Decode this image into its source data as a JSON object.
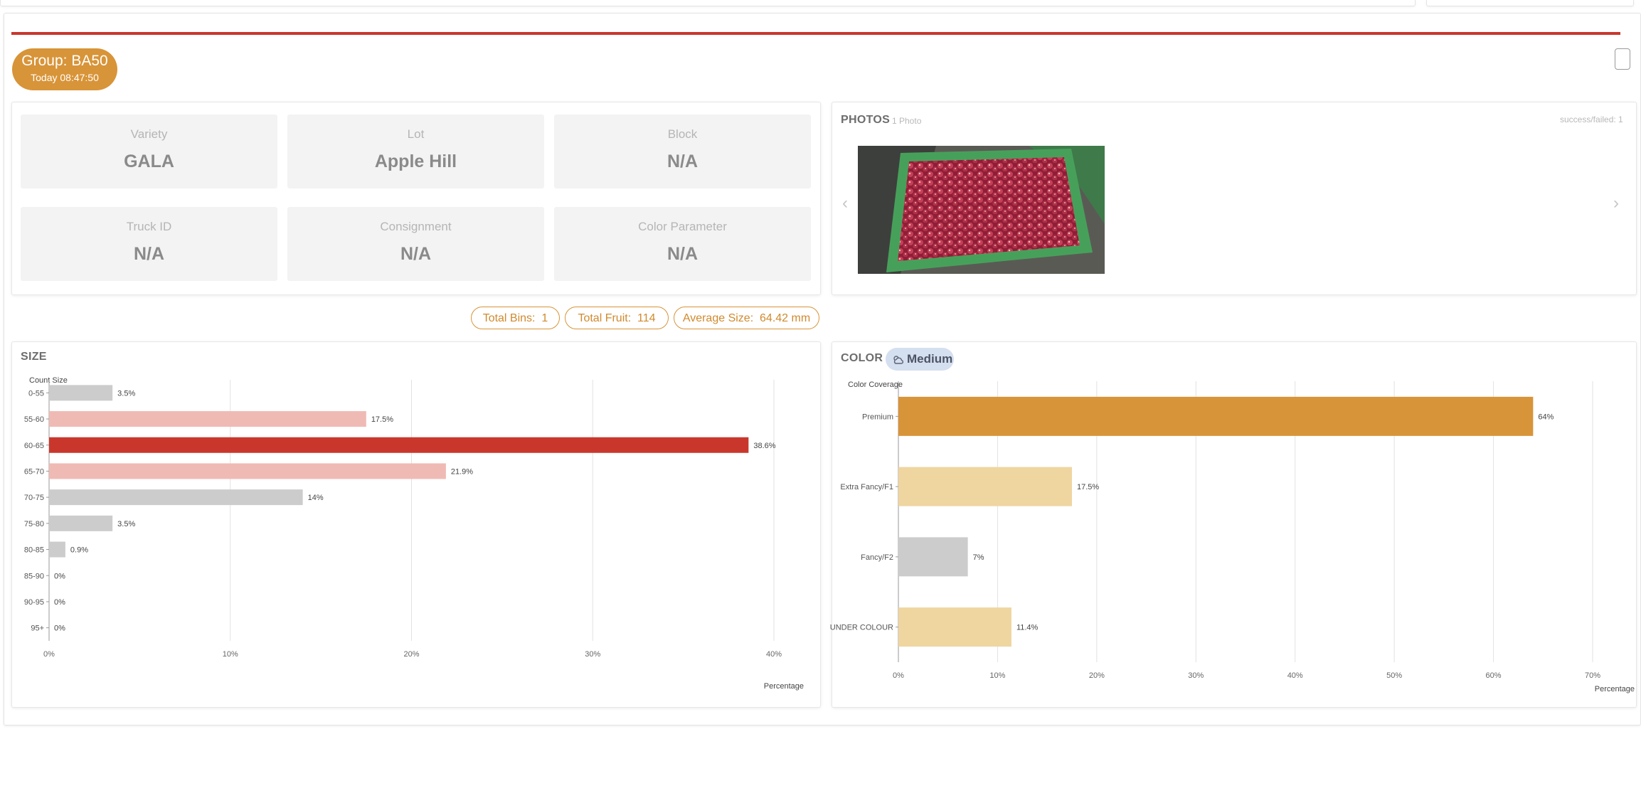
{
  "group": {
    "title": "Group: BA50",
    "time": "Today 08:47:50"
  },
  "info_tiles": [
    {
      "label": "Variety",
      "value": "GALA"
    },
    {
      "label": "Lot",
      "value": "Apple Hill"
    },
    {
      "label": "Block",
      "value": "N/A"
    },
    {
      "label": "Truck ID",
      "value": "N/A"
    },
    {
      "label": "Consignment",
      "value": "N/A"
    },
    {
      "label": "Color Parameter",
      "value": "N/A"
    }
  ],
  "photos": {
    "title": "PHOTOS",
    "count_label": "1 Photo",
    "status": "success/failed: 1"
  },
  "stats": {
    "bins_label": "Total Bins:",
    "bins_value": "1",
    "fruit_label": "Total Fruit:",
    "fruit_value": "114",
    "avg_label": "Average Size:",
    "avg_value": "64.42 mm"
  },
  "size_section": {
    "title": "SIZE"
  },
  "color_section": {
    "title": "COLOR",
    "badge": "Medium",
    "badge_icon": "weather-icon"
  },
  "colors": {
    "accent": "#d89438",
    "red": "#c9372c",
    "pink": "#f0bab4",
    "grey": "#cccccc",
    "tan": "#efd5a0"
  },
  "chart_data": [
    {
      "type": "bar",
      "orientation": "horizontal",
      "ylabel": "Count Size",
      "xlabel": "Percentage",
      "categories": [
        "0-55",
        "55-60",
        "60-65",
        "65-70",
        "70-75",
        "75-80",
        "80-85",
        "85-90",
        "90-95",
        "95+"
      ],
      "values": [
        3.5,
        17.5,
        38.6,
        21.9,
        14,
        3.5,
        0.9,
        0,
        0,
        0
      ],
      "labels": [
        "3.5%",
        "17.5%",
        "38.6%",
        "21.9%",
        "14%",
        "3.5%",
        "0.9%",
        "0%",
        "0%",
        "0%"
      ],
      "bar_colors": [
        "#cccccc",
        "#f0bab4",
        "#c9372c",
        "#f0bab4",
        "#cccccc",
        "#cccccc",
        "#cccccc",
        "#cccccc",
        "#cccccc",
        "#cccccc"
      ],
      "xlim": [
        0,
        40
      ],
      "xticks": [
        "0%",
        "10%",
        "20%",
        "30%",
        "40%"
      ],
      "grid": true
    },
    {
      "type": "bar",
      "orientation": "horizontal",
      "ylabel": "Color Coverage",
      "xlabel": "Percentage",
      "categories": [
        "Premium",
        "Extra Fancy/F1",
        "Fancy/F2",
        "UNDER COLOUR"
      ],
      "values": [
        64,
        17.5,
        7,
        11.4
      ],
      "labels": [
        "64%",
        "17.5%",
        "7%",
        "11.4%"
      ],
      "bar_colors": [
        "#d89438",
        "#efd5a0",
        "#cccccc",
        "#efd5a0"
      ],
      "xlim": [
        0,
        70
      ],
      "xticks": [
        "0%",
        "10%",
        "20%",
        "30%",
        "40%",
        "50%",
        "60%",
        "70%"
      ],
      "grid": true
    }
  ]
}
